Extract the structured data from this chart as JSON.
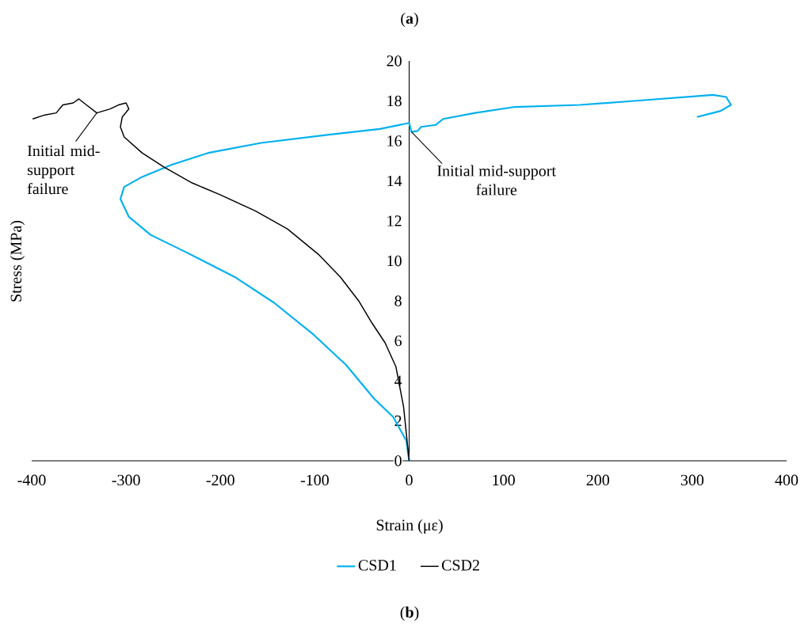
{
  "chart_data": {
    "type": "line",
    "title": "(**a**)",
    "xlabel": "Strain (με)",
    "ylabel": "Stress (MPa)",
    "xlim": [
      -400,
      400
    ],
    "ylim": [
      0,
      20
    ],
    "xticks": [
      -400,
      -300,
      -200,
      -100,
      0,
      100,
      200,
      300,
      400
    ],
    "yticks": [
      0,
      2,
      4,
      6,
      8,
      10,
      12,
      14,
      16,
      18,
      20
    ],
    "grid": false,
    "legend": "bottom",
    "marker": "none",
    "line_style": "solid",
    "series": [
      {
        "name": "CSD1",
        "color": "#00b0f0",
        "x": [
          0,
          -3,
          -17,
          -37,
          -67,
          -101,
          -143,
          -185,
          -235,
          -274,
          -297,
          -306,
          -302,
          -283,
          -252,
          -213,
          -157,
          -87,
          -31,
          0,
          2.5,
          9,
          12.6,
          28,
          36,
          70,
          112,
          181,
          238,
          294,
          322,
          336,
          341,
          330,
          322,
          305
        ],
        "values": [
          0,
          1,
          2.2,
          3.1,
          4.8,
          6.3,
          7.9,
          9.2,
          10.4,
          11.3,
          12.2,
          13.1,
          13.7,
          14.2,
          14.8,
          15.4,
          15.9,
          16.3,
          16.6,
          16.9,
          16.45,
          16.5,
          16.7,
          16.8,
          17.1,
          17.4,
          17.7,
          17.8,
          18.0,
          18.2,
          18.3,
          18.2,
          17.8,
          17.5,
          17.4,
          17.2
        ]
      },
      {
        "name": "CSD2",
        "color": "#000000",
        "x": [
          0,
          -5.9,
          -14,
          -25.5,
          -39.5,
          -53.5,
          -73,
          -95.5,
          -129,
          -163,
          -200,
          -230,
          -260,
          -283,
          -302,
          -306,
          -304,
          -297,
          -300,
          -308,
          -317,
          -331,
          -342,
          -350,
          -356,
          -367,
          -374,
          -386,
          -399
        ],
        "values": [
          0,
          2.7,
          4.7,
          5.9,
          6.9,
          8,
          9.2,
          10.3,
          11.6,
          12.5,
          13.3,
          13.9,
          14.7,
          15.4,
          16.2,
          16.7,
          17.2,
          17.6,
          17.9,
          17.8,
          17.6,
          17.4,
          17.8,
          18.1,
          17.9,
          17.8,
          17.4,
          17.3,
          17.1
        ]
      }
    ],
    "annotations": [
      {
        "text": "Initial mid-support failure",
        "x": -331,
        "y": 17.4
      },
      {
        "text": "Initial mid-support failure",
        "x": 2.5,
        "y": 16.45
      },
      "(**b**)"
    ]
  }
}
